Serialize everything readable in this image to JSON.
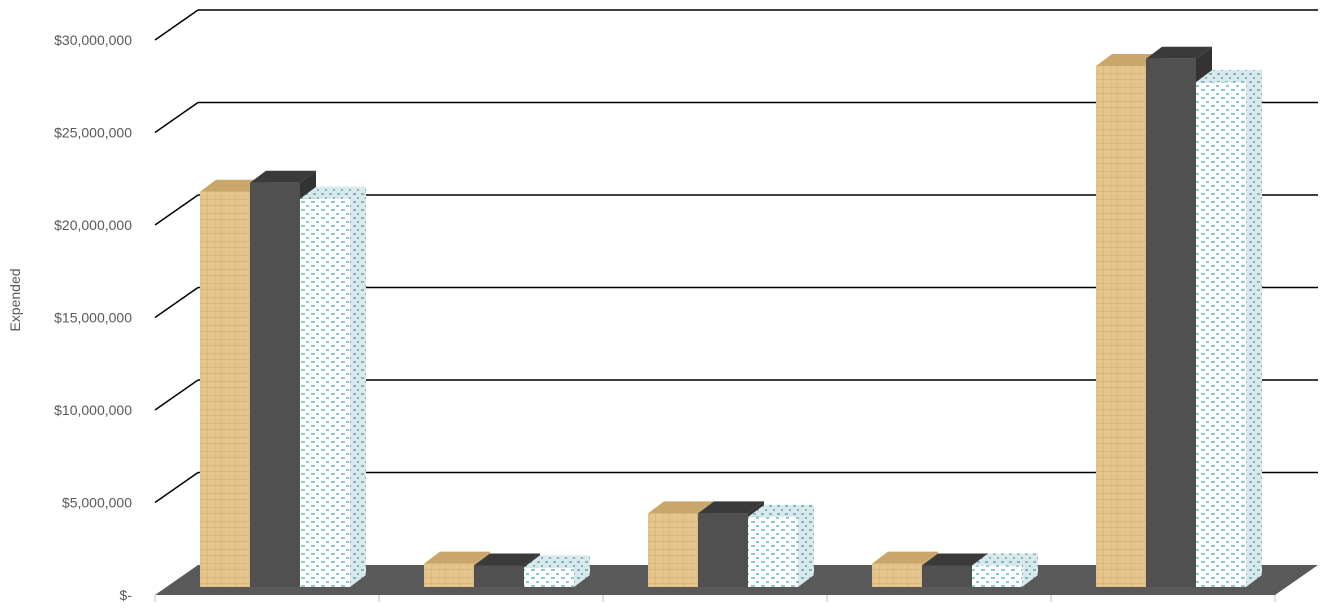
{
  "colors": {
    "series_tan": "#e4c58c",
    "series_tan_dark": "#c9a66a",
    "series_dark": "#505050",
    "series_dark_top": "#3a3a3a",
    "series_dots": "#8ec9d3",
    "floor": "#595959",
    "gridline": "#000000",
    "axis_text": "#595959"
  },
  "chart_data": {
    "type": "bar",
    "style": "3d-clustered-column",
    "ylabel": "Expended",
    "xlabel": "",
    "ylim": [
      0,
      30000000
    ],
    "y_ticks": [
      0,
      5000000,
      10000000,
      15000000,
      20000000,
      25000000,
      30000000
    ],
    "y_tick_labels": [
      "$-",
      "$5,000,000",
      "$10,000,000",
      "$15,000,000",
      "$20,000,000",
      "$25,000,000",
      "$30,000,000"
    ],
    "gridlines": true,
    "legend": "none",
    "category_count": 5,
    "series": [
      {
        "pattern": "tan-texture",
        "values": [
          22000000,
          1300000,
          4100000,
          1300000,
          29000000
        ]
      },
      {
        "pattern": "dark-solid",
        "values": [
          22500000,
          1200000,
          4100000,
          1200000,
          29400000
        ]
      },
      {
        "pattern": "light-blue-dots",
        "values": [
          21600000,
          1100000,
          3900000,
          1200000,
          28100000
        ]
      }
    ]
  }
}
